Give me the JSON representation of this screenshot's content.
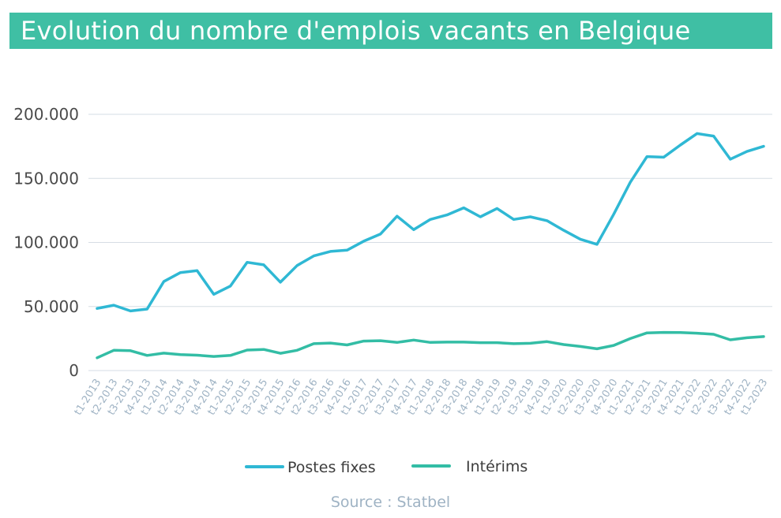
{
  "title": "Evolution du nombre d'emplois vacants en Belgique",
  "source": "Source : Statbel",
  "colors": {
    "title_bg": "#3fbfa4",
    "postes_fixes": "#2fb8d4",
    "interims": "#33bda5",
    "grid": "#d6dde4",
    "axis_text": "#4a4a4a",
    "tick_text": "#9fb3c4"
  },
  "chart_data": {
    "type": "line",
    "ylim": [
      0,
      200000
    ],
    "y_ticks": [
      0,
      50000,
      100000,
      150000,
      200000
    ],
    "y_tick_labels": [
      "0",
      "50.000",
      "100.000",
      "150.000",
      "200.000"
    ],
    "grid": true,
    "legend_position": "bottom-center",
    "categories": [
      "t1-2013",
      "t2-2013",
      "t3-2013",
      "t4-2013",
      "t1-2014",
      "t2-2014",
      "t3-2014",
      "t4-2014",
      "t1-2015",
      "t2-2015",
      "t3-2015",
      "t4-2015",
      "t1-2016",
      "t2-2016",
      "t3-2016",
      "t4-2016",
      "t1-2017",
      "t2-2017",
      "t3-2017",
      "t4-2017",
      "t1-2018",
      "t2-2018",
      "t3-2018",
      "t4-2018",
      "t1-2019",
      "t2-2019",
      "t3-2019",
      "t4-2019",
      "t1-2020",
      "t2-2020",
      "t3-2020",
      "t4-2020",
      "t1-2021",
      "t2-2021",
      "t3-2021",
      "t4-2021",
      "t1-2022",
      "t2-2022",
      "t3-2022",
      "t4-2022",
      "t1-2023"
    ],
    "series": [
      {
        "name": "Postes fixes",
        "values": [
          48500,
          51000,
          46500,
          48000,
          69500,
          76500,
          78000,
          59500,
          66000,
          84500,
          82500,
          69000,
          82000,
          89500,
          93000,
          94000,
          101000,
          106500,
          120500,
          110000,
          118000,
          121500,
          127000,
          120000,
          126500,
          118000,
          120000,
          117000,
          109500,
          102500,
          98500,
          122000,
          147000,
          167000,
          166500,
          176000,
          185000,
          183000,
          165000,
          171000,
          175000
        ]
      },
      {
        "name": "Intérims",
        "values": [
          10000,
          15800,
          15500,
          11800,
          13600,
          12500,
          12000,
          11000,
          11800,
          16000,
          16500,
          13500,
          15800,
          21000,
          21500,
          20000,
          23000,
          23300,
          22000,
          23800,
          22000,
          22200,
          22200,
          21800,
          21800,
          21000,
          21300,
          22600,
          20300,
          18800,
          17000,
          19600,
          25000,
          29400,
          29800,
          29700,
          29200,
          28300,
          24000,
          25600,
          26500
        ]
      }
    ]
  }
}
